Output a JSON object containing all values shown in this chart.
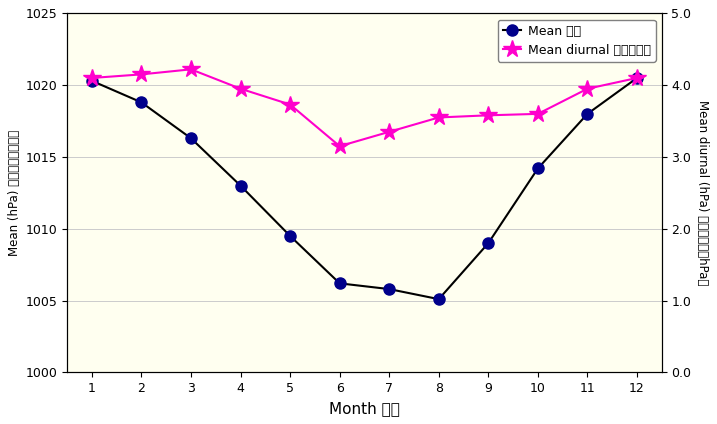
{
  "months": [
    1,
    2,
    3,
    4,
    5,
    6,
    7,
    8,
    9,
    10,
    11,
    12
  ],
  "mean_pressure": [
    1020.3,
    1018.8,
    1016.3,
    1013.0,
    1009.5,
    1006.2,
    1005.8,
    1005.1,
    1009.0,
    1014.2,
    1018.0,
    1020.5
  ],
  "mean_diurnal": [
    4.1,
    4.15,
    4.22,
    3.95,
    3.73,
    3.15,
    3.35,
    3.55,
    3.58,
    3.6,
    3.95,
    4.1
  ],
  "ylabel_left": "Mean (hPa) 平均（百帕斯卡）",
  "ylabel_right": "Mean diurnal (hPa) 平均日較差（hPa）",
  "xlabel": "Month 月份",
  "ylim_left": [
    1000,
    1025
  ],
  "ylim_right": [
    0.0,
    5.0
  ],
  "yticks_left": [
    1000,
    1005,
    1010,
    1015,
    1020,
    1025
  ],
  "yticks_right": [
    0.0,
    1.0,
    2.0,
    3.0,
    4.0,
    5.0
  ],
  "legend_mean": "Mean 平均",
  "legend_diurnal": "Mean diurnal 平均日較差",
  "line_color": "#000000",
  "marker_color": "#00008B",
  "diurnal_color": "#FF00CC",
  "background_color": "#FFFFF0",
  "outer_background": "#FFFFFF",
  "grid_color": "#CCCCCC"
}
